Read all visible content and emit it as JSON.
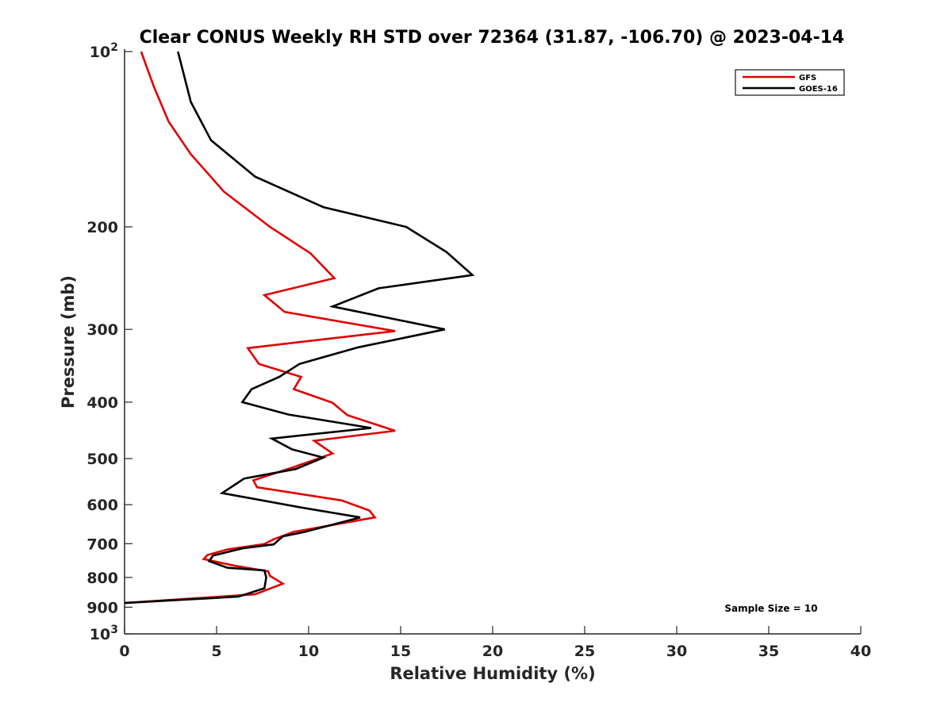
{
  "chart_data": {
    "type": "line",
    "title": "Clear CONUS Weekly RH STD over 72364 (31.87, -106.70) @ 2023-04-14",
    "xlabel": "Relative Humidity (%)",
    "ylabel": "Pressure (mb)",
    "xlim": [
      0,
      40
    ],
    "ylim": [
      100,
      1000
    ],
    "y_scale": "log",
    "y_reversed": true,
    "grid": false,
    "legend_position": "top-right",
    "x_ticks": [
      "0",
      "5",
      "10",
      "15",
      "20",
      "25",
      "30",
      "35",
      "40"
    ],
    "x_tick_values": [
      0,
      5,
      10,
      15,
      20,
      25,
      30,
      35,
      40
    ],
    "y_ticks": [
      {
        "value": 100,
        "base": "10",
        "exp": "2"
      },
      {
        "value": 200,
        "label": "200"
      },
      {
        "value": 300,
        "label": "300"
      },
      {
        "value": 400,
        "label": "400"
      },
      {
        "value": 500,
        "label": "500"
      },
      {
        "value": 600,
        "label": "600"
      },
      {
        "value": 700,
        "label": "700"
      },
      {
        "value": 800,
        "label": "800"
      },
      {
        "value": 900,
        "label": "900"
      },
      {
        "value": 1000,
        "base": "10",
        "exp": "3"
      }
    ],
    "annotation": "Sample Size = 10",
    "series": [
      {
        "name": "GFS",
        "color": "#e00000",
        "points": [
          [
            0.9,
            100
          ],
          [
            1.6,
            115
          ],
          [
            2.4,
            132
          ],
          [
            3.6,
            150
          ],
          [
            5.4,
            174
          ],
          [
            7.9,
            200
          ],
          [
            10.1,
            222
          ],
          [
            11.4,
            245
          ],
          [
            7.6,
            262
          ],
          [
            8.7,
            280
          ],
          [
            14.7,
            302
          ],
          [
            6.7,
            323
          ],
          [
            7.3,
            344
          ],
          [
            9.6,
            362
          ],
          [
            9.2,
            380
          ],
          [
            11.3,
            401
          ],
          [
            12.1,
            421
          ],
          [
            14.7,
            448
          ],
          [
            10.3,
            466
          ],
          [
            11.3,
            490
          ],
          [
            9.2,
            517
          ],
          [
            7.0,
            545
          ],
          [
            7.2,
            560
          ],
          [
            11.8,
            590
          ],
          [
            13.3,
            614
          ],
          [
            13.6,
            631
          ],
          [
            9.2,
            668
          ],
          [
            8.1,
            688
          ],
          [
            7.6,
            701
          ],
          [
            5.6,
            716
          ],
          [
            4.5,
            732
          ],
          [
            4.3,
            744
          ],
          [
            6.0,
            764
          ],
          [
            7.8,
            781
          ],
          [
            7.9,
            795
          ],
          [
            8.6,
            820
          ],
          [
            7.1,
            855
          ],
          [
            0.0,
            885
          ]
        ]
      },
      {
        "name": "GOES-16",
        "color": "#000000",
        "points": [
          [
            2.9,
            100
          ],
          [
            3.6,
            122
          ],
          [
            4.7,
            142
          ],
          [
            7.1,
            164
          ],
          [
            10.8,
            185
          ],
          [
            15.3,
            200
          ],
          [
            17.5,
            221
          ],
          [
            18.9,
            242
          ],
          [
            13.8,
            255
          ],
          [
            11.3,
            274
          ],
          [
            17.4,
            300
          ],
          [
            12.7,
            322
          ],
          [
            9.5,
            344
          ],
          [
            8.4,
            362
          ],
          [
            6.9,
            380
          ],
          [
            6.4,
            400
          ],
          [
            8.9,
            420
          ],
          [
            13.4,
            443
          ],
          [
            8.0,
            462
          ],
          [
            9.1,
            482
          ],
          [
            10.8,
            498
          ],
          [
            9.3,
            521
          ],
          [
            6.5,
            541
          ],
          [
            5.3,
            573
          ],
          [
            9.5,
            606
          ],
          [
            12.8,
            631
          ],
          [
            9.8,
            668
          ],
          [
            8.6,
            680
          ],
          [
            8.1,
            702
          ],
          [
            6.4,
            713
          ],
          [
            4.8,
            734
          ],
          [
            4.6,
            750
          ],
          [
            5.6,
            770
          ],
          [
            7.6,
            778
          ],
          [
            7.7,
            800
          ],
          [
            7.6,
            835
          ],
          [
            6.2,
            863
          ],
          [
            0.0,
            885
          ]
        ]
      }
    ]
  }
}
